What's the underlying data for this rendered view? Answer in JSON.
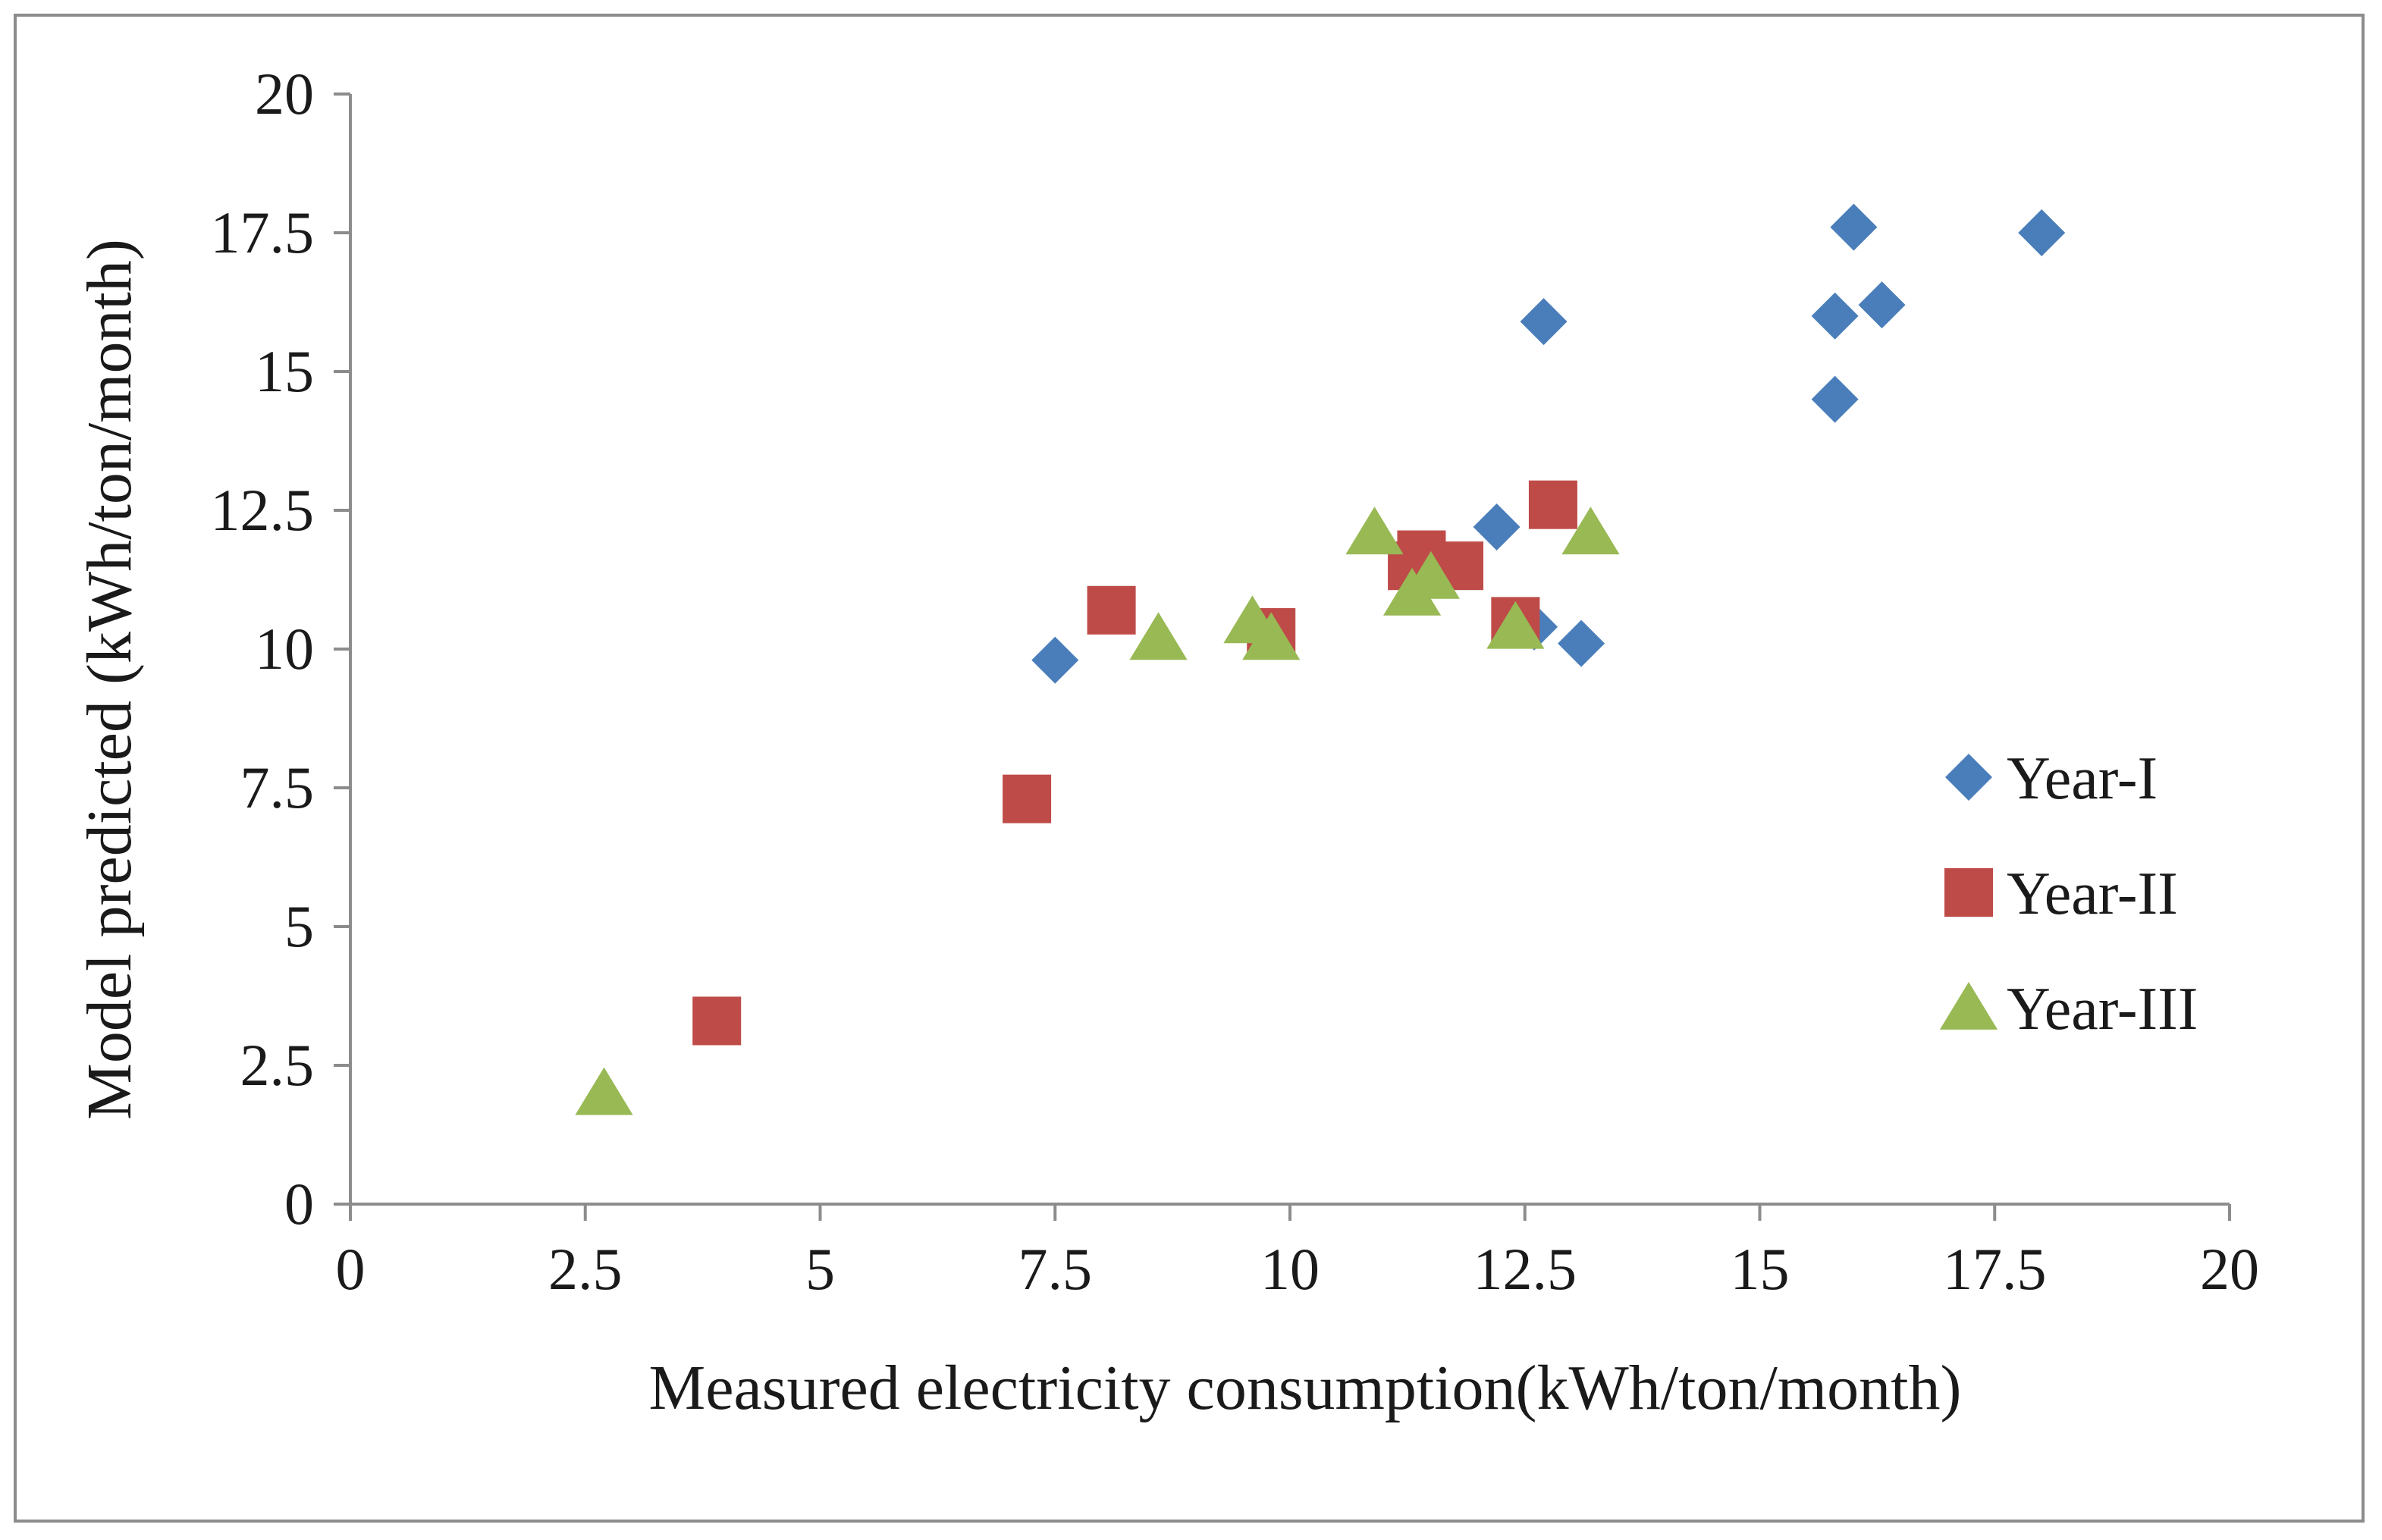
{
  "chart_data": {
    "type": "scatter",
    "title": "",
    "xlabel": "Measured electricity  consumption(kWh/ton/month)",
    "ylabel": "Model predicted (kWh/ton/month)",
    "xlim": [
      0,
      20
    ],
    "ylim": [
      0,
      20
    ],
    "x_ticks": [
      0,
      2.5,
      5,
      7.5,
      10,
      12.5,
      15,
      17.5,
      20
    ],
    "y_ticks": [
      0,
      2.5,
      5,
      7.5,
      10,
      12.5,
      15,
      17.5,
      20
    ],
    "x_tick_labels": [
      "0",
      "2.5",
      "5",
      "7.5",
      "10",
      "12.5",
      "15",
      "17.5",
      "20"
    ],
    "y_tick_labels": [
      "0",
      "2.5",
      "5",
      "7.5",
      "10",
      "12.5",
      "15",
      "17.5",
      "20"
    ],
    "grid": false,
    "legend_position": "right",
    "series": [
      {
        "name": "Year-I",
        "marker": "diamond",
        "color": "#4a7ebb",
        "points": [
          {
            "x": 7.5,
            "y": 9.8
          },
          {
            "x": 12.2,
            "y": 12.2
          },
          {
            "x": 12.6,
            "y": 10.4
          },
          {
            "x": 12.7,
            "y": 15.9
          },
          {
            "x": 13.1,
            "y": 10.1
          },
          {
            "x": 15.8,
            "y": 16.0
          },
          {
            "x": 15.8,
            "y": 14.5
          },
          {
            "x": 16.0,
            "y": 17.6
          },
          {
            "x": 16.3,
            "y": 16.2
          },
          {
            "x": 18.0,
            "y": 17.5
          }
        ]
      },
      {
        "name": "Year-II",
        "marker": "square",
        "color": "#be4b48",
        "points": [
          {
            "x": 3.9,
            "y": 3.3
          },
          {
            "x": 7.2,
            "y": 7.3
          },
          {
            "x": 8.1,
            "y": 10.7
          },
          {
            "x": 9.8,
            "y": 10.3
          },
          {
            "x": 11.3,
            "y": 11.5
          },
          {
            "x": 11.4,
            "y": 11.7
          },
          {
            "x": 11.8,
            "y": 11.5
          },
          {
            "x": 12.4,
            "y": 10.5
          },
          {
            "x": 12.8,
            "y": 12.6
          }
        ]
      },
      {
        "name": "Year-III",
        "marker": "triangle",
        "color": "#98b954",
        "points": [
          {
            "x": 2.7,
            "y": 2.0
          },
          {
            "x": 8.6,
            "y": 10.2
          },
          {
            "x": 9.6,
            "y": 10.5
          },
          {
            "x": 9.8,
            "y": 10.2
          },
          {
            "x": 10.9,
            "y": 12.1
          },
          {
            "x": 11.3,
            "y": 11.0
          },
          {
            "x": 11.5,
            "y": 11.3
          },
          {
            "x": 12.4,
            "y": 10.4
          },
          {
            "x": 13.2,
            "y": 12.1
          }
        ]
      }
    ]
  }
}
